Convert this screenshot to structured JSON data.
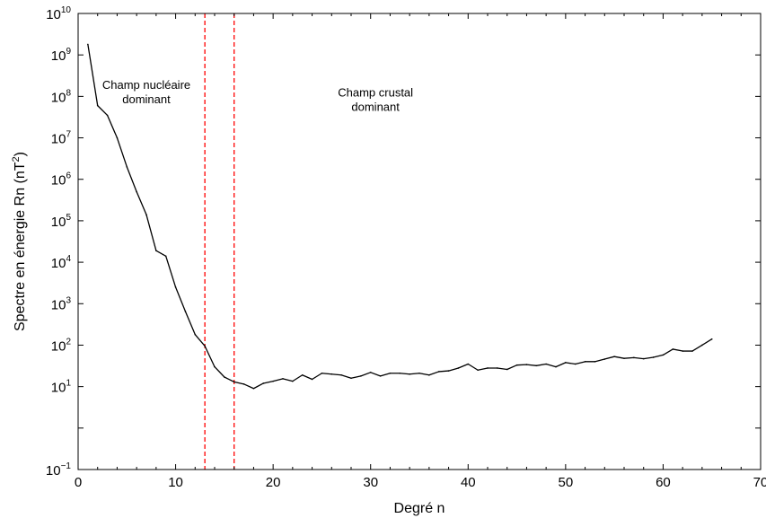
{
  "chart_data": {
    "type": "line",
    "title": "",
    "xlabel": "Degré n",
    "ylabel": "Spectre en énergie Rn (nT²)",
    "xlim": [
      0,
      70
    ],
    "ylim": [
      0.1,
      10000000000
    ],
    "yscale": "log",
    "grid": false,
    "x_ticks": [
      0,
      10,
      20,
      30,
      40,
      50,
      60,
      70
    ],
    "y_tick_labels": [
      {
        "base": "10",
        "exp": "−1",
        "value": 0.1
      },
      {
        "base": "10",
        "exp": "1",
        "value": 10
      },
      {
        "base": "10",
        "exp": "2",
        "value": 100
      },
      {
        "base": "10",
        "exp": "3",
        "value": 1000
      },
      {
        "base": "10",
        "exp": "4",
        "value": 10000
      },
      {
        "base": "10",
        "exp": "5",
        "value": 100000
      },
      {
        "base": "10",
        "exp": "6",
        "value": 1000000
      },
      {
        "base": "10",
        "exp": "7",
        "value": 10000000
      },
      {
        "base": "10",
        "exp": "8",
        "value": 100000000
      },
      {
        "base": "10",
        "exp": "9",
        "value": 1000000000
      },
      {
        "base": "10",
        "exp": "10",
        "value": 10000000000
      }
    ],
    "series": [
      {
        "color": "#000000",
        "x": [
          1,
          2,
          3,
          4,
          5,
          6,
          7,
          8,
          9,
          10,
          11,
          12,
          13,
          14,
          15,
          16,
          17,
          18,
          19,
          20,
          21,
          22,
          23,
          24,
          25,
          26,
          27,
          28,
          29,
          30,
          31,
          32,
          33,
          34,
          35,
          36,
          37,
          38,
          39,
          40,
          41,
          42,
          43,
          44,
          45,
          46,
          47,
          48,
          49,
          50,
          51,
          52,
          53,
          54,
          55,
          56,
          57,
          58,
          59,
          60,
          61,
          62,
          63,
          64,
          65
        ],
        "y": [
          1800000000,
          60000000,
          35000000,
          10000000,
          2000000,
          500000,
          140000,
          19000,
          14000,
          2500,
          650,
          180,
          95,
          30,
          17,
          13,
          11.5,
          9,
          12,
          13.5,
          15.5,
          13.5,
          19,
          15,
          21,
          20,
          19,
          16,
          18,
          22,
          18,
          21,
          21,
          20,
          21,
          19,
          23,
          24,
          28,
          35,
          25,
          28,
          28,
          26,
          33,
          34,
          32,
          35,
          30,
          38,
          35,
          40,
          40,
          46,
          53,
          48,
          50,
          47,
          51,
          58,
          80,
          72,
          72,
          100,
          140
        ]
      }
    ],
    "markers": [
      {
        "x": 13,
        "color": "#ff0000",
        "style": "dashed"
      },
      {
        "x": 16,
        "color": "#ff0000",
        "style": "dashed"
      }
    ],
    "annotations": [
      {
        "lines": [
          "Champ nucléaire",
          "dominant"
        ],
        "x": 7,
        "y": 150000000
      },
      {
        "lines": [
          "Champ crustal",
          "dominant"
        ],
        "x": 30.5,
        "y": 100000000
      }
    ]
  }
}
